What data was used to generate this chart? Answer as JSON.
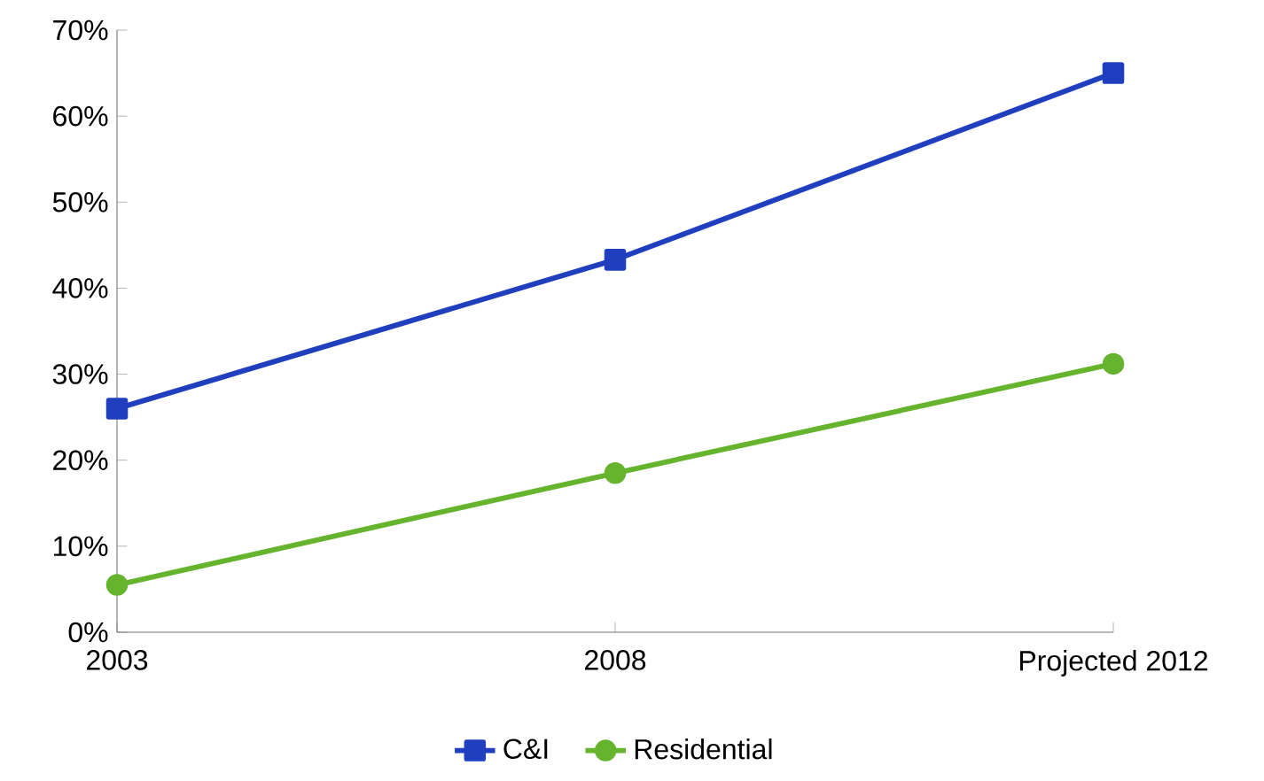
{
  "chart_data": {
    "type": "line",
    "categories": [
      "2003",
      "2008",
      "Projected 2012"
    ],
    "series": [
      {
        "name": "C&I",
        "color": "#1f3fbf",
        "marker": "square",
        "values": [
          26,
          43.3,
          65
        ]
      },
      {
        "name": "Residential",
        "color": "#66b32e",
        "marker": "circle",
        "values": [
          5.5,
          18.5,
          31.2
        ]
      }
    ],
    "ylim": [
      0,
      70
    ],
    "yticks": [
      {
        "value": 0,
        "label": "0%"
      },
      {
        "value": 10,
        "label": "10%"
      },
      {
        "value": 20,
        "label": "20%"
      },
      {
        "value": 30,
        "label": "30%"
      },
      {
        "value": 40,
        "label": "40%"
      },
      {
        "value": 50,
        "label": "50%"
      },
      {
        "value": 60,
        "label": "60%"
      },
      {
        "value": 70,
        "label": "70%"
      }
    ],
    "grid": false,
    "legend": "bottom",
    "line_style": "solid"
  }
}
